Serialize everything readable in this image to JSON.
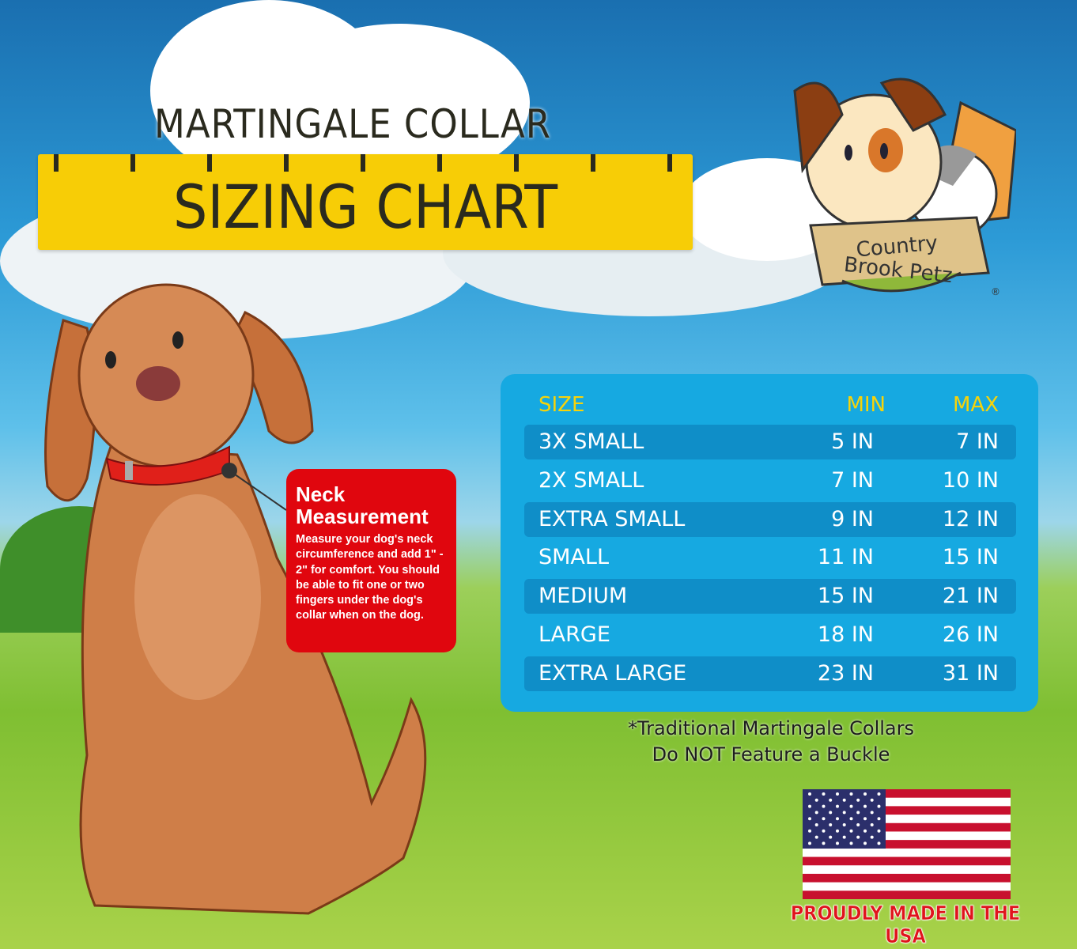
{
  "title": {
    "line1": "MARTINGALE COLLAR",
    "line2": "SIZING CHART"
  },
  "logo": {
    "brand": "Country Brook Petz",
    "registered": "®"
  },
  "neck_box": {
    "heading_1": "Neck",
    "heading_2": "Measurement",
    "body": "Measure your dog's neck circumference and add 1\" - 2\" for comfort. You should be able to fit one or two fingers under the dog's collar when on the dog."
  },
  "table": {
    "headers": [
      "SIZE",
      "MIN",
      "MAX"
    ],
    "rows": [
      [
        "3X SMALL",
        "5 IN",
        "7 IN"
      ],
      [
        "2X SMALL",
        "7 IN",
        "10 IN"
      ],
      [
        "EXTRA SMALL",
        "9 IN",
        "12 IN"
      ],
      [
        "SMALL",
        "11 IN",
        "15 IN"
      ],
      [
        "MEDIUM",
        "15 IN",
        "21 IN"
      ],
      [
        "LARGE",
        "18 IN",
        "26 IN"
      ],
      [
        "EXTRA LARGE",
        "23 IN",
        "31 IN"
      ]
    ]
  },
  "note": {
    "line1": "*Traditional Martingale Collars",
    "line2": "Do NOT Feature a Buckle"
  },
  "made_in": "PROUDLY MADE IN THE USA",
  "colors": {
    "ruler": "#f7cd06",
    "panel": "#16a9e1",
    "row_dark": "#0f8ec8",
    "header": "#f7d30a",
    "neck_box": "#e0060e",
    "usa_text": "#e0141c"
  }
}
